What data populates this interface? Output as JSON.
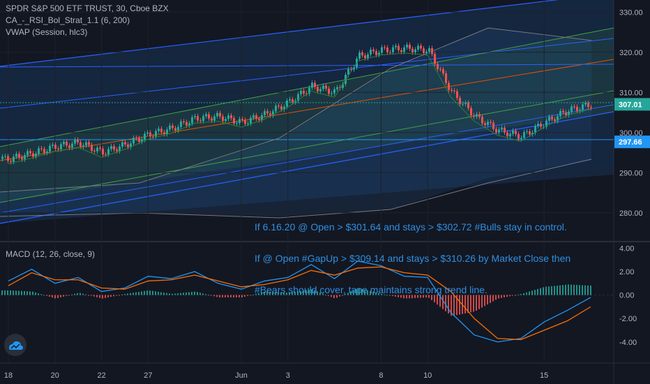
{
  "legend": {
    "symbol": "SPDR S&P 500 ETF TRUST, 30, Cboe BZX",
    "indicator1": "CA_-_RSI_Bol_Strat_1.1 (6, 200)",
    "indicator2": "VWAP (Session, hlc3)",
    "macd": "MACD (12, 26, close, 9)"
  },
  "annotation": [
    "If 6.16.20 @ Open > $301.64 and stays > $302.72 #Bulls stay in control.",
    "If @ Open #GapUp > $309.14 and stays > $310.26 by Market Close then",
    "#Bears should cover, tape maintains strong trend line."
  ],
  "colors": {
    "background": "#131722",
    "up": "#26a69a",
    "down": "#ef5350",
    "blue_line": "#2962ff",
    "macd_line": "#2196f3",
    "signal_line": "#ff6d00",
    "hist_up": "#26a69a",
    "hist_down": "#ef5350",
    "price_label": "#2196f3"
  },
  "icons": {
    "logo": "tradingview-cloud-icon"
  },
  "chart_data": {
    "type": "candlestick",
    "price_axis": {
      "ticks": [
        "330.00",
        "320.00",
        "310.00",
        "300.00",
        "290.00",
        "280.00"
      ],
      "range": [
        273,
        333
      ]
    },
    "macd_axis": {
      "ticks": [
        "4.00",
        "2.00",
        "0.00",
        "-2.00",
        "-4.00"
      ],
      "range": [
        -5.8,
        4.5
      ]
    },
    "x_ticks": [
      "18",
      "20",
      "22",
      "27",
      "Jun",
      "3",
      "8",
      "10",
      "15"
    ],
    "price_labels": {
      "last": "307.01",
      "level": "297.66"
    },
    "price_path": [
      [
        "18",
        293.4
      ],
      [
        "",
        294.8
      ],
      [
        "20",
        296.5
      ],
      [
        "",
        297.5
      ],
      [
        "22",
        295.0
      ],
      [
        "",
        297.0
      ],
      [
        "27",
        299.5
      ],
      [
        "",
        301.0
      ],
      [
        "",
        303.5
      ],
      [
        "",
        304.0
      ],
      [
        "Jun",
        302.5
      ],
      [
        "",
        304.5
      ],
      [
        "3",
        307.5
      ],
      [
        "",
        311.5
      ],
      [
        "",
        310.0
      ],
      [
        "",
        319.0
      ],
      [
        "8",
        320.5
      ],
      [
        "",
        321.0
      ],
      [
        "10",
        320.5
      ],
      [
        "",
        310.0
      ],
      [
        "",
        304.0
      ],
      [
        "",
        300.5
      ],
      [
        "",
        299.0
      ],
      [
        "15",
        302.5
      ],
      [
        "",
        305.5
      ],
      [
        "",
        307.01
      ]
    ],
    "macd": {
      "line": [
        [
          "18",
          1.2
        ],
        [
          "",
          2.2
        ],
        [
          "20",
          1.0
        ],
        [
          "",
          1.5
        ],
        [
          "22",
          0.3
        ],
        [
          "",
          0.6
        ],
        [
          "27",
          1.6
        ],
        [
          "",
          1.4
        ],
        [
          "",
          2.0
        ],
        [
          "",
          1.0
        ],
        [
          "Jun",
          0.5
        ],
        [
          "",
          1.2
        ],
        [
          "3",
          1.5
        ],
        [
          "",
          2.6
        ],
        [
          "",
          1.4
        ],
        [
          "",
          2.9
        ],
        [
          "8",
          2.5
        ],
        [
          "",
          1.6
        ],
        [
          "10",
          1.5
        ],
        [
          "",
          -1.5
        ],
        [
          "",
          -3.4
        ],
        [
          "",
          -4.0
        ],
        [
          "",
          -3.7
        ],
        [
          "15",
          -2.3
        ],
        [
          "",
          -1.3
        ],
        [
          "",
          -0.2
        ]
      ],
      "signal": [
        [
          "18",
          0.8
        ],
        [
          "",
          1.9
        ],
        [
          "20",
          1.3
        ],
        [
          "",
          1.3
        ],
        [
          "22",
          0.6
        ],
        [
          "",
          0.5
        ],
        [
          "27",
          1.2
        ],
        [
          "",
          1.3
        ],
        [
          "",
          1.7
        ],
        [
          "",
          1.2
        ],
        [
          "Jun",
          0.7
        ],
        [
          "",
          0.9
        ],
        [
          "3",
          1.3
        ],
        [
          "",
          2.1
        ],
        [
          "",
          1.7
        ],
        [
          "",
          2.3
        ],
        [
          "8",
          2.4
        ],
        [
          "",
          1.9
        ],
        [
          "10",
          1.7
        ],
        [
          "",
          0.3
        ],
        [
          "",
          -2.0
        ],
        [
          "",
          -3.7
        ],
        [
          "",
          -3.8
        ],
        [
          "15",
          -3.0
        ],
        [
          "",
          -2.2
        ],
        [
          "",
          -1.0
        ]
      ]
    }
  }
}
